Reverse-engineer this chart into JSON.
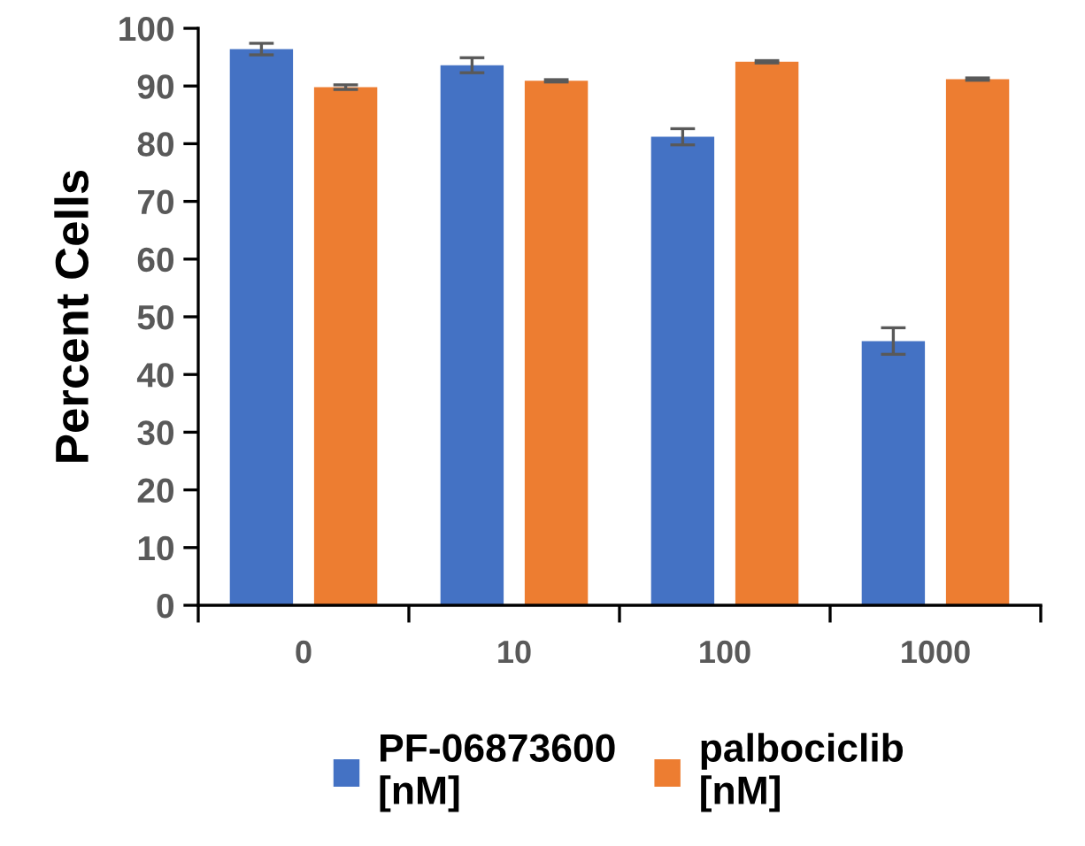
{
  "chart_data": {
    "type": "bar",
    "ylabel": "Percent Cells",
    "categories": [
      "0",
      "10",
      "100",
      "1000"
    ],
    "ylim": [
      0,
      100
    ],
    "yticks": [
      0,
      10,
      20,
      30,
      40,
      50,
      60,
      70,
      80,
      90,
      100
    ],
    "grid": false,
    "legend": "bottom",
    "series": [
      {
        "name": "PF-06873600\n[nM]",
        "color": "#4472c4",
        "values": [
          96.4,
          93.6,
          81.2,
          45.8
        ],
        "errors": [
          1.0,
          1.3,
          1.4,
          2.3
        ]
      },
      {
        "name": "palbociclib\n[nM]",
        "color": "#ed7d31",
        "values": [
          89.8,
          90.9,
          94.2,
          91.2
        ],
        "errors": [
          0.4,
          0.2,
          0.2,
          0.2
        ]
      }
    ]
  }
}
